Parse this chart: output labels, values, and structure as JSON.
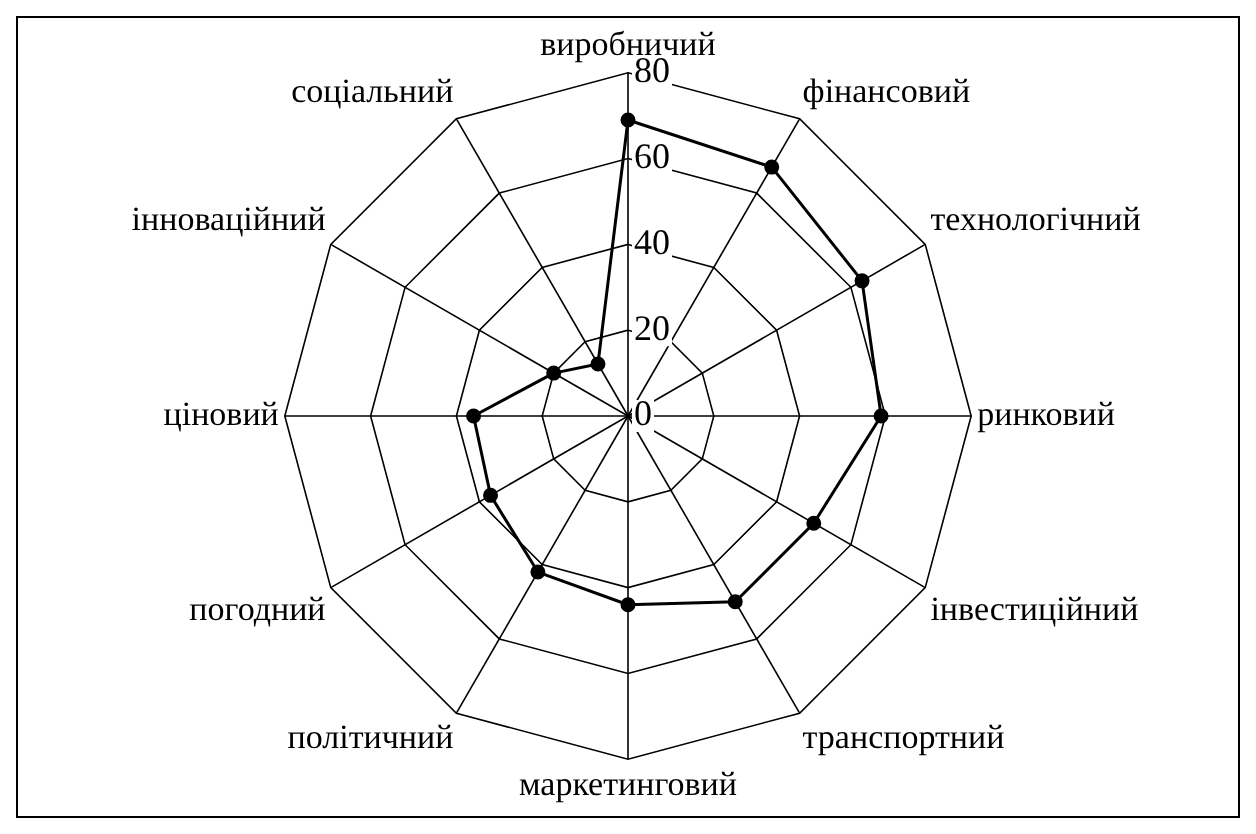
{
  "chart_data": {
    "type": "radar",
    "categories": [
      "виробничий",
      "фінансовий",
      "технологічний",
      "ринковий",
      "інвестиційний",
      "транспортний",
      "маркетинговий",
      "політичний",
      "погодний",
      "ціновий",
      "інноваційний",
      "соціальний"
    ],
    "series": [
      {
        "color": "#000000",
        "values": [
          69,
          67,
          63,
          59,
          50,
          50,
          44,
          42,
          37,
          36,
          20,
          14
        ]
      }
    ],
    "ylim": [
      0,
      80
    ],
    "yticks": [
      0,
      20,
      40,
      60,
      80
    ],
    "grid": true,
    "legend": false,
    "marker": "circle",
    "line_style": "solid"
  }
}
